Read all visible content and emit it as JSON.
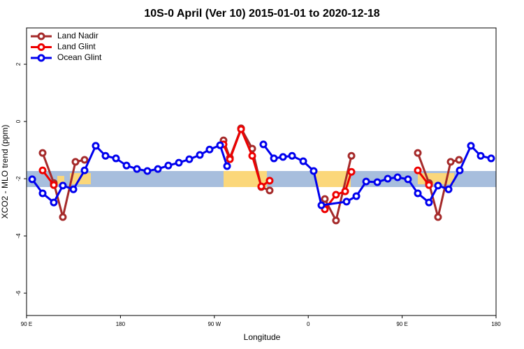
{
  "chart_data": {
    "type": "line",
    "title": "10S-0 April (Ver 10)   2015-01-01 to 2020-12-18",
    "x_label": "Longitude",
    "y_label": "XCO2 - MLO trend (ppm)",
    "xlim": [
      90,
      540
    ],
    "ylim": [
      -6.78,
      3.27
    ],
    "xticks": [
      {
        "value": 90,
        "label": "90 E"
      },
      180,
      {
        "value": 270,
        "label": "90 W"
      },
      {
        "value": 360,
        "label": "0"
      },
      {
        "value": 450,
        "label": "90 E"
      },
      {
        "value": 540,
        "label": "180"
      }
    ],
    "yticks": [
      -6,
      -4,
      -2,
      0,
      2
    ],
    "legend": "top-left",
    "series": [
      {
        "name": "Land Nadir",
        "color": "#a52a2a",
        "x": [
          105.4,
          116.1,
          124.8,
          136.9,
          145.6,
          null,
          278.8,
          284.9,
          295.6,
          306.3,
          315.0,
          323.0,
          null,
          375.9,
          386.6,
          401.4,
          null,
          465.0,
          475.7,
          484.4,
          496.5,
          504.5
        ],
        "values": [
          -1.1,
          -2.15,
          -3.34,
          -1.41,
          -1.34,
          null,
          -0.66,
          -1.27,
          -0.24,
          -0.95,
          -2.29,
          -2.41,
          null,
          -2.71,
          -3.46,
          -1.2,
          null,
          -1.1,
          -2.15,
          -3.34,
          -1.41,
          -1.34
        ]
      },
      {
        "name": "Land Glint",
        "color": "#ee0000",
        "x": [
          105.4,
          116.1,
          null,
          278.8,
          284.9,
          295.6,
          306.3,
          315.0,
          323.0,
          null,
          375.9,
          386.6,
          395.4,
          401.4,
          null,
          465.0,
          475.7
        ],
        "values": [
          -1.71,
          -2.22,
          null,
          -0.8,
          -1.32,
          -0.27,
          -1.2,
          -2.27,
          -2.07,
          null,
          -3.07,
          -2.56,
          -2.44,
          -1.76,
          null,
          -1.71,
          -2.22
        ]
      },
      {
        "name": "Ocean Glint",
        "color": "#0000ee",
        "x": [
          95.4,
          105.4,
          116.1,
          124.8,
          134.9,
          145.6,
          156.3,
          165.7,
          175.7,
          185.8,
          195.8,
          205.8,
          215.9,
          225.9,
          236.0,
          246.0,
          256.1,
          265.4,
          275.5,
          282.2,
          null,
          317.0,
          327.1,
          335.8,
          344.5,
          355.2,
          365.2,
          372.6,
          396.7,
          406.1,
          415.5,
          426.2,
          436.2,
          445.6,
          455.6,
          465.0,
          475.7,
          484.4,
          494.5,
          505.2,
          515.9,
          525.3,
          535.3
        ],
        "values": [
          -2.02,
          -2.51,
          -2.83,
          -2.24,
          -2.37,
          -1.71,
          -0.85,
          -1.2,
          -1.29,
          -1.54,
          -1.66,
          -1.73,
          -1.66,
          -1.54,
          -1.44,
          -1.32,
          -1.17,
          -0.98,
          -0.83,
          -1.56,
          null,
          -0.8,
          -1.29,
          -1.24,
          -1.2,
          -1.39,
          -1.73,
          -2.93,
          -2.8,
          -2.61,
          -2.1,
          -2.12,
          -2.0,
          -1.95,
          -2.02,
          -2.51,
          -2.83,
          -2.24,
          -2.37,
          -1.71,
          -0.85,
          -1.2,
          -1.29
        ]
      }
    ]
  }
}
